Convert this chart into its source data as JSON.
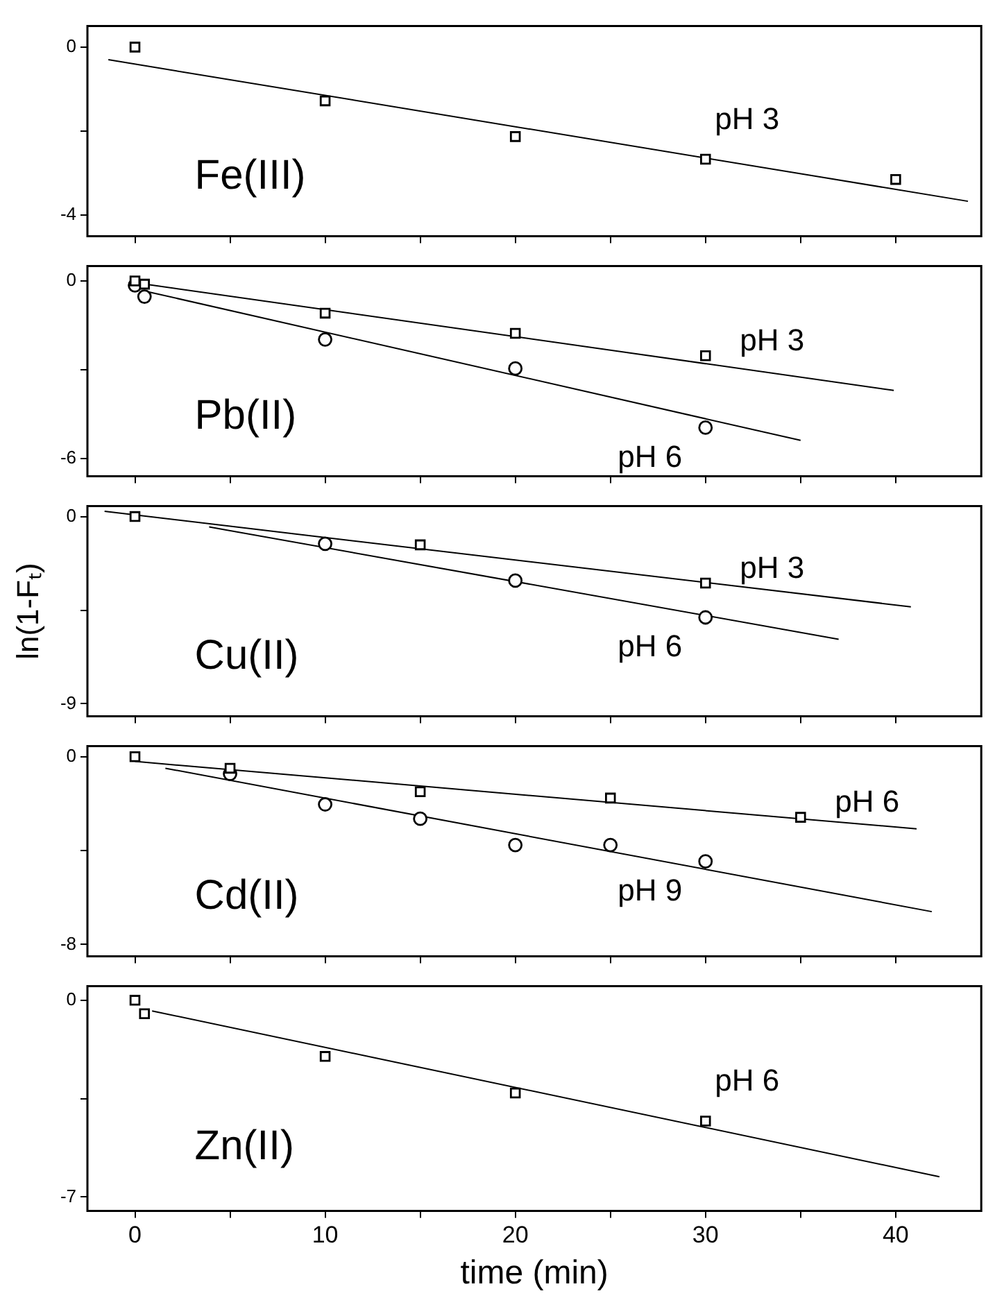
{
  "chart_data": [
    {
      "type": "scatter",
      "title": "Fe(III)",
      "xlim": [
        -2.5,
        44.5
      ],
      "xticks": [
        0,
        {
          "value": 5,
          "label": null
        },
        10,
        {
          "value": 15,
          "label": null
        },
        20,
        {
          "value": 25,
          "label": null
        },
        30,
        {
          "value": 35,
          "label": null
        },
        40
      ],
      "ylim": [
        -4.5,
        0.5
      ],
      "yticks": [
        0,
        {
          "value": -2,
          "label": null
        },
        -4
      ],
      "tick_labels": "y",
      "legend": false,
      "series": [
        {
          "type": "scatter",
          "name": "pH 3",
          "marker": "square",
          "color": "#000000",
          "x": [
            0,
            10,
            20,
            30,
            40
          ],
          "values": [
            0,
            -1.28,
            -2.13,
            -2.67,
            -3.15
          ]
        },
        {
          "type": "line",
          "marker": "none",
          "color": "#000000",
          "x": [
            -1.4,
            43.8
          ],
          "values": [
            -0.3,
            -3.67
          ]
        }
      ]
    },
    {
      "type": "scatter",
      "title": "Pb(II)",
      "xlim": [
        -2.5,
        44.5
      ],
      "xticks": [
        0,
        {
          "value": 5,
          "label": null
        },
        10,
        {
          "value": 15,
          "label": null
        },
        20,
        {
          "value": 25,
          "label": null
        },
        30,
        {
          "value": 35,
          "label": null
        },
        40
      ],
      "ylim": [
        -6.6,
        0.5
      ],
      "yticks": [
        0,
        {
          "value": -3,
          "label": null
        },
        -6
      ],
      "tick_labels": "y",
      "legend": false,
      "series": [
        {
          "type": "scatter",
          "name": "pH 3",
          "marker": "square",
          "color": "#000000",
          "x": [
            0,
            0.5,
            10,
            20,
            30
          ],
          "values": [
            0,
            -0.11,
            -1.09,
            -1.77,
            -2.53
          ]
        },
        {
          "type": "scatter",
          "name": "pH 6",
          "marker": "circle",
          "color": "#000000",
          "x": [
            0,
            0.5,
            10,
            20,
            30
          ],
          "values": [
            -0.15,
            -0.53,
            -1.98,
            -2.96,
            -4.96
          ]
        },
        {
          "type": "line",
          "marker": "none",
          "color": "#000000",
          "x": [
            0,
            39.9
          ],
          "values": [
            -0.06,
            -3.7
          ]
        },
        {
          "type": "line",
          "marker": "none",
          "color": "#000000",
          "x": [
            0.5,
            35
          ],
          "values": [
            -0.34,
            -5.39
          ]
        }
      ]
    },
    {
      "type": "scatter",
      "title": "Cu(II)",
      "ylabel": "ln(1-Fₜ)",
      "xlim": [
        -2.5,
        44.5
      ],
      "xticks": [
        0,
        {
          "value": 5,
          "label": null
        },
        10,
        {
          "value": 15,
          "label": null
        },
        20,
        {
          "value": 25,
          "label": null
        },
        30,
        {
          "value": 35,
          "label": null
        },
        40
      ],
      "ylim": [
        -9.6,
        0.5
      ],
      "yticks": [
        0,
        {
          "value": -4.5,
          "label": null
        },
        -9
      ],
      "tick_labels": "y",
      "legend": false,
      "series": [
        {
          "type": "scatter",
          "name": "pH 3",
          "marker": "square",
          "color": "#000000",
          "x": [
            0,
            15,
            30
          ],
          "values": [
            0,
            -1.36,
            -3.2
          ]
        },
        {
          "type": "scatter",
          "name": "pH 6",
          "marker": "circle",
          "color": "#000000",
          "x": [
            10,
            20,
            30
          ],
          "values": [
            -1.31,
            -3.08,
            -4.85
          ]
        },
        {
          "type": "line",
          "marker": "none",
          "color": "#000000",
          "x": [
            -1.6,
            40.8
          ],
          "values": [
            0.25,
            -4.34
          ]
        },
        {
          "type": "line",
          "marker": "none",
          "color": "#000000",
          "x": [
            3.9,
            37
          ],
          "values": [
            -0.5,
            -5.9
          ]
        }
      ]
    },
    {
      "type": "scatter",
      "title": "Cd(II)",
      "xlim": [
        -2.5,
        44.5
      ],
      "xticks": [
        0,
        {
          "value": 5,
          "label": null
        },
        10,
        {
          "value": 15,
          "label": null
        },
        20,
        {
          "value": 25,
          "label": null
        },
        30,
        {
          "value": 35,
          "label": null
        },
        40
      ],
      "ylim": [
        -8.5,
        0.45
      ],
      "yticks": [
        0,
        {
          "value": -4,
          "label": null
        },
        -8
      ],
      "tick_labels": "y",
      "legend": false,
      "series": [
        {
          "type": "scatter",
          "name": "pH 6",
          "marker": "square",
          "color": "#000000",
          "x": [
            0,
            5,
            15,
            25,
            35
          ],
          "values": [
            0,
            -0.49,
            -1.49,
            -1.76,
            -2.58
          ]
        },
        {
          "type": "scatter",
          "name": "pH 9",
          "marker": "circle",
          "color": "#000000",
          "x": [
            5,
            10,
            15,
            20,
            25,
            30
          ],
          "values": [
            -0.73,
            -2.03,
            -2.64,
            -3.76,
            -3.76,
            -4.46
          ]
        },
        {
          "type": "line",
          "marker": "none",
          "color": "#000000",
          "x": [
            0,
            41.1
          ],
          "values": [
            -0.2,
            -3.07
          ]
        },
        {
          "type": "line",
          "marker": "none",
          "color": "#000000",
          "x": [
            1.6,
            41.9
          ],
          "values": [
            -0.49,
            -6.6
          ]
        }
      ]
    },
    {
      "type": "scatter",
      "title": "Zn(II)",
      "xlabel": "time (min)",
      "xlim": [
        -2.5,
        44.5
      ],
      "xticks": [
        0,
        {
          "value": 5,
          "label": null
        },
        10,
        {
          "value": 15,
          "label": null
        },
        20,
        {
          "value": 25,
          "label": null
        },
        30,
        {
          "value": 35,
          "label": null
        },
        40
      ],
      "ylim": [
        -7.5,
        0.5
      ],
      "yticks": [
        0,
        {
          "value": -3.5,
          "label": null
        },
        -7
      ],
      "legend": false,
      "series": [
        {
          "type": "scatter",
          "name": "pH 6",
          "marker": "square",
          "color": "#000000",
          "x": [
            0,
            0.5,
            10,
            20,
            30
          ],
          "values": [
            0,
            -0.48,
            -2.0,
            -3.3,
            -4.3
          ]
        },
        {
          "type": "line",
          "marker": "none",
          "color": "#000000",
          "x": [
            0.9,
            42.3
          ],
          "values": [
            -0.38,
            -6.28
          ]
        }
      ]
    }
  ]
}
